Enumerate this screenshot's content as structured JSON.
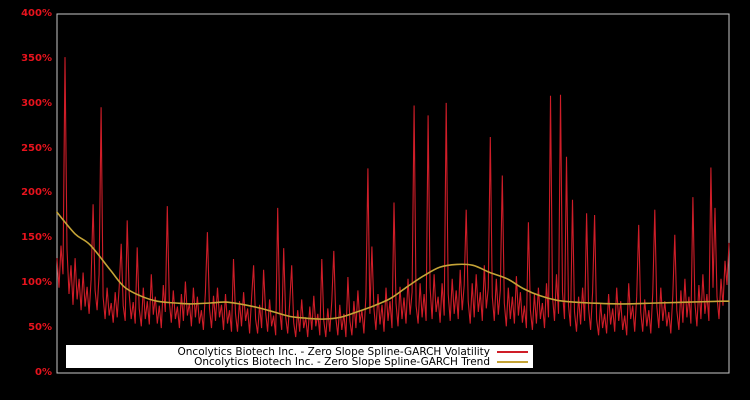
{
  "chart_data": {
    "type": "line",
    "title": "",
    "background_color": "#000000",
    "plot_border_color": "#c8c8c8",
    "grid": "off",
    "x_axis": {
      "tick_labels_visible": false
    },
    "y_axis": {
      "min": 0,
      "max": 400,
      "step": 50,
      "unit": "%",
      "tick_color": "#e8131d",
      "tick_labels": [
        "400%",
        "350%",
        "300%",
        "250%",
        "200%",
        "150%",
        "100%",
        "50%",
        "0%"
      ]
    },
    "legend": {
      "position": "bottom-left-inside",
      "background": "#ffffff",
      "entries": [
        {
          "label": "Oncolytics Biotech Inc. - Zero Slope Spline-GARCH Volatility",
          "color": "#cf1d28"
        },
        {
          "label": "Oncolytics Biotech Inc. - Zero Slope Spline-GARCH Trend",
          "color": "#c5a437"
        }
      ]
    },
    "series": [
      {
        "name": "Oncolytics Biotech Inc. - Zero Slope Spline-GARCH Volatility",
        "color": "#cf1d28",
        "style": "spiky-line",
        "sampling": "evenly spaced across full x-range, values in percent",
        "values_pct": [
          128,
          95,
          142,
          110,
          352,
          138,
          88,
          120,
          76,
          128,
          82,
          105,
          70,
          112,
          74,
          96,
          66,
          104,
          188,
          92,
          70,
          110,
          296,
          85,
          60,
          95,
          64,
          78,
          56,
          90,
          62,
          96,
          144,
          75,
          58,
          170,
          88,
          60,
          79,
          55,
          140,
          72,
          52,
          95,
          60,
          80,
          54,
          110,
          65,
          85,
          55,
          75,
          50,
          98,
          68,
          186,
          80,
          56,
          92,
          60,
          74,
          50,
          88,
          58,
          102,
          64,
          78,
          52,
          95,
          62,
          85,
          55,
          70,
          48,
          90,
          157,
          72,
          50,
          86,
          58,
          95,
          62,
          76,
          48,
          88,
          55,
          70,
          46,
          127,
          66,
          46,
          80,
          52,
          90,
          58,
          72,
          44,
          84,
          120,
          60,
          44,
          76,
          50,
          115,
          68,
          46,
          82,
          52,
          64,
          42,
          184,
          70,
          48,
          139,
          62,
          44,
          78,
          120,
          56,
          40,
          70,
          46,
          82,
          50,
          62,
          40,
          74,
          48,
          86,
          52,
          66,
          42,
          127,
          58,
          40,
          72,
          46,
          80,
          136,
          62,
          42,
          76,
          48,
          66,
          40,
          107,
          58,
          42,
          80,
          50,
          92,
          56,
          70,
          44,
          85,
          228,
          66,
          141,
          72,
          48,
          88,
          54,
          76,
          46,
          95,
          58,
          80,
          50,
          190,
          78,
          52,
          96,
          60,
          84,
          55,
          105,
          65,
          90,
          298,
          75,
          55,
          100,
          62,
          88,
          58,
          287,
          95,
          60,
          110,
          68,
          85,
          56,
          100,
          64,
          301,
          88,
          58,
          105,
          66,
          92,
          60,
          115,
          70,
          98,
          182,
          80,
          55,
          100,
          62,
          110,
          68,
          90,
          58,
          120,
          72,
          95,
          263,
          85,
          58,
          105,
          65,
          92,
          220,
          78,
          52,
          95,
          60,
          85,
          55,
          108,
          64,
          90,
          56,
          75,
          50,
          168,
          70,
          48,
          88,
          55,
          95,
          60,
          78,
          50,
          100,
          62,
          309,
          85,
          58,
          110,
          66,
          310,
          90,
          60,
          241,
          75,
          52,
          193,
          68,
          46,
          85,
          54,
          95,
          58,
          178,
          72,
          48,
          90,
          176,
          60,
          42,
          78,
          50,
          66,
          44,
          88,
          54,
          72,
          46,
          95,
          58,
          80,
          48,
          64,
          42,
          100,
          60,
          75,
          46,
          85,
          165,
          68,
          46,
          82,
          52,
          70,
          44,
          90,
          182,
          74,
          50,
          95,
          58,
          80,
          52,
          68,
          44,
          86,
          154,
          70,
          48,
          92,
          56,
          105,
          62,
          85,
          55,
          196,
          78,
          52,
          98,
          60,
          110,
          66,
          88,
          58,
          229,
          95,
          184,
          85,
          60,
          105,
          75,
          125,
          98,
          145
        ]
      },
      {
        "name": "Oncolytics Biotech Inc. - Zero Slope Spline-GARCH Trend",
        "color": "#c5a437",
        "style": "smooth-line",
        "sampling": "pairs of [x-fraction of plot width, value in percent]",
        "points_pct": [
          [
            0.0,
            179
          ],
          [
            0.027,
            155
          ],
          [
            0.049,
            143
          ],
          [
            0.079,
            115
          ],
          [
            0.1,
            96
          ],
          [
            0.124,
            86
          ],
          [
            0.149,
            80
          ],
          [
            0.176,
            78
          ],
          [
            0.198,
            77
          ],
          [
            0.228,
            78
          ],
          [
            0.25,
            79
          ],
          [
            0.272,
            77
          ],
          [
            0.298,
            73
          ],
          [
            0.323,
            68
          ],
          [
            0.347,
            63
          ],
          [
            0.372,
            61
          ],
          [
            0.397,
            60
          ],
          [
            0.421,
            62
          ],
          [
            0.446,
            68
          ],
          [
            0.472,
            75
          ],
          [
            0.496,
            83
          ],
          [
            0.521,
            96
          ],
          [
            0.545,
            108
          ],
          [
            0.57,
            118
          ],
          [
            0.595,
            121
          ],
          [
            0.619,
            120
          ],
          [
            0.644,
            112
          ],
          [
            0.67,
            105
          ],
          [
            0.694,
            94
          ],
          [
            0.719,
            86
          ],
          [
            0.744,
            81
          ],
          [
            0.768,
            79
          ],
          [
            0.793,
            78
          ],
          [
            0.842,
            77
          ],
          [
            0.893,
            78
          ],
          [
            0.942,
            79
          ],
          [
            0.991,
            80
          ],
          [
            1.0,
            80
          ]
        ]
      }
    ]
  }
}
